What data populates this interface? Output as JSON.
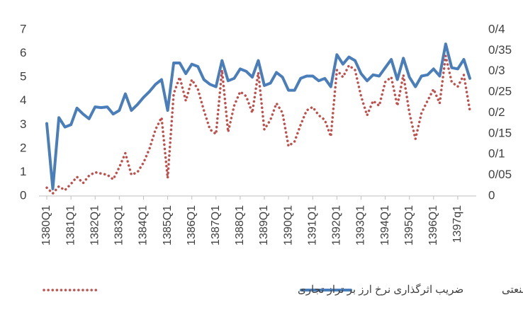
{
  "chart_data": {
    "type": "line",
    "categories": [
      "1380Q1",
      null,
      null,
      null,
      "1381Q1",
      null,
      null,
      null,
      "1382Q1",
      null,
      null,
      null,
      "1383Q1",
      null,
      null,
      null,
      "1384Q1",
      null,
      null,
      null,
      "1385Q1",
      null,
      null,
      null,
      "1386Q1",
      null,
      null,
      null,
      "1387Q1",
      null,
      null,
      null,
      "1388Q1",
      null,
      null,
      null,
      "1389Q1",
      null,
      null,
      null,
      "1390Q1",
      null,
      null,
      null,
      "1391Q1",
      null,
      null,
      null,
      "1392Q1",
      null,
      null,
      null,
      "1393Q1",
      null,
      null,
      null,
      "1394Q1",
      null,
      null,
      null,
      "1395Q1",
      null,
      null,
      null,
      "1396Q1",
      null,
      null,
      null,
      "1397q1",
      null,
      null
    ],
    "series": [
      {
        "name": "شاخص تجارت درون صنعتی",
        "color": "#4a7ebb",
        "axis": "y",
        "values": [
          3.05,
          0.3,
          3.3,
          2.9,
          3.0,
          3.7,
          3.45,
          3.25,
          3.75,
          3.72,
          3.75,
          3.45,
          3.6,
          4.3,
          3.6,
          3.85,
          4.15,
          4.4,
          4.7,
          4.9,
          3.6,
          5.6,
          5.6,
          5.15,
          5.55,
          5.45,
          4.9,
          4.7,
          4.6,
          5.7,
          4.85,
          4.95,
          5.35,
          5.25,
          5.0,
          5.7,
          4.65,
          4.75,
          5.2,
          5.0,
          4.45,
          4.45,
          4.95,
          5.05,
          5.05,
          4.85,
          4.95,
          4.6,
          5.95,
          5.55,
          5.85,
          5.7,
          5.15,
          4.85,
          5.1,
          5.05,
          5.4,
          5.75,
          4.9,
          5.8,
          5.0,
          4.6,
          5.05,
          5.1,
          5.35,
          5.05,
          6.4,
          5.4,
          5.35,
          5.75,
          4.95
        ]
      },
      {
        "name": "ضریب اثرگذاری نرخ ارز بر تراز تجاری",
        "color": "#c0504d",
        "axis": "y2",
        "values": [
          0.02,
          0.006,
          0.023,
          0.014,
          0.029,
          0.046,
          0.031,
          0.049,
          0.057,
          0.054,
          0.051,
          0.04,
          0.069,
          0.103,
          0.051,
          0.057,
          0.08,
          0.114,
          0.16,
          0.189,
          0.043,
          0.246,
          0.286,
          0.229,
          0.28,
          0.257,
          0.206,
          0.16,
          0.149,
          0.303,
          0.154,
          0.217,
          0.251,
          0.24,
          0.2,
          0.297,
          0.16,
          0.183,
          0.223,
          0.2,
          0.12,
          0.131,
          0.171,
          0.206,
          0.214,
          0.194,
          0.183,
          0.143,
          0.303,
          0.286,
          0.314,
          0.303,
          0.24,
          0.194,
          0.229,
          0.217,
          0.274,
          0.286,
          0.217,
          0.291,
          0.2,
          0.137,
          0.2,
          0.229,
          0.257,
          0.223,
          0.337,
          0.274,
          0.263,
          0.291,
          0.206
        ]
      }
    ],
    "ylim": [
      0,
      7
    ],
    "yticks": [
      0,
      1,
      2,
      3,
      4,
      5,
      6,
      7
    ],
    "y2lim": [
      0,
      0.4
    ],
    "y2ticks": [
      0,
      {
        "value": 0.05,
        "label": "0/05"
      },
      {
        "value": 0.1,
        "label": "0/1"
      },
      {
        "value": 0.15,
        "label": "0/15"
      },
      {
        "value": 0.2,
        "label": "0/2"
      },
      {
        "value": 0.25,
        "label": "0/25"
      },
      {
        "value": 0.3,
        "label": "0/3"
      },
      {
        "value": 0.35,
        "label": "0/35"
      },
      {
        "value": {
          "value": 0.4,
          "label": "0/4"
        },
        "label": "0/4"
      }
    ],
    "grid": false,
    "legend": "bottom"
  }
}
